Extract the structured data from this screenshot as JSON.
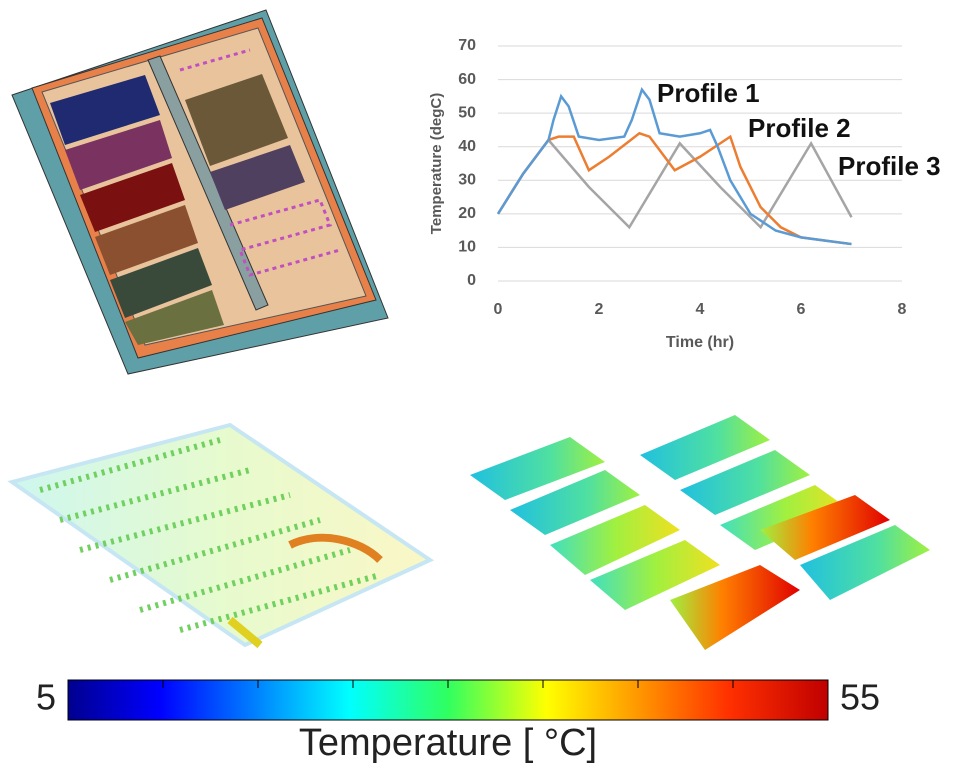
{
  "chart_data": [
    {
      "type": "line",
      "y_label": "Temperature (degC)",
      "x_label": "Time (hr)",
      "xlim": [
        0,
        8
      ],
      "xticks": [
        0,
        2,
        4,
        6,
        8
      ],
      "ylim": [
        0,
        70
      ],
      "yticks": [
        0,
        10,
        20,
        30,
        40,
        50,
        60,
        70
      ],
      "grid": true,
      "series": [
        {
          "name": "Profile 1",
          "color": "#5b9bd5",
          "x": [
            0,
            0.5,
            1,
            1.1,
            1.25,
            1.4,
            1.6,
            2,
            2.5,
            2.65,
            2.85,
            3.0,
            3.2,
            3.6,
            4.0,
            4.2,
            4.35,
            4.6,
            5,
            5.5,
            6,
            6.5,
            7
          ],
          "values": [
            20,
            32,
            42,
            48,
            55,
            52,
            43,
            42,
            43,
            48,
            57,
            54,
            44,
            43,
            44,
            45,
            40,
            30,
            20,
            15,
            13,
            12,
            11
          ]
        },
        {
          "name": "Profile 2",
          "color": "#ed7d31",
          "x": [
            0,
            0.5,
            1,
            1.2,
            1.5,
            1.8,
            2.2,
            2.8,
            3.0,
            3.5,
            4.0,
            4.6,
            4.8,
            5.2,
            5.6,
            6,
            6.5,
            7
          ],
          "values": [
            20,
            32,
            42,
            43,
            43,
            33,
            37,
            44,
            43,
            33,
            37,
            43,
            34,
            22,
            16,
            13,
            12,
            11
          ]
        },
        {
          "name": "Profile 3",
          "color": "#a5a5a5",
          "x": [
            0,
            0.5,
            1,
            1.8,
            2.6,
            3.6,
            4.4,
            5.2,
            6.2,
            7
          ],
          "values": [
            20,
            32,
            42,
            28,
            16,
            41,
            28,
            16,
            41,
            19
          ]
        }
      ]
    },
    {
      "type": "colorbar",
      "title": "Temperature [ °C]",
      "xlim": [
        5,
        55
      ],
      "xticks": [
        5,
        55
      ]
    }
  ]
}
